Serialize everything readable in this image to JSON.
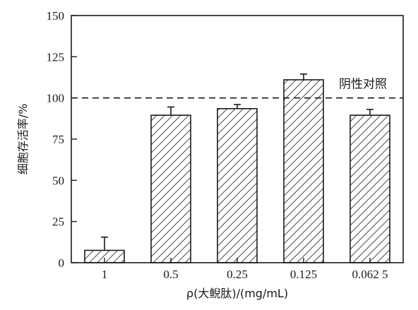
{
  "chart_data": {
    "type": "bar",
    "categories": [
      "1",
      "0.5",
      "0.25",
      "0.125",
      "0.062 5"
    ],
    "values": [
      7.5,
      89.5,
      93.5,
      111,
      89.5
    ],
    "errors": [
      8,
      5,
      2.5,
      3.5,
      3.5
    ],
    "xlabel": "ρ(大鲵肽)/(mg/mL)",
    "ylabel": "细胞存活率/%",
    "ylim": [
      0,
      150
    ],
    "yticks": [
      0,
      25,
      50,
      75,
      100,
      125,
      150
    ],
    "reference_line": {
      "value": 100,
      "label": "阴性对照",
      "style": "dashed"
    },
    "bar_fill": "diagonal-hatch",
    "grid": false
  }
}
